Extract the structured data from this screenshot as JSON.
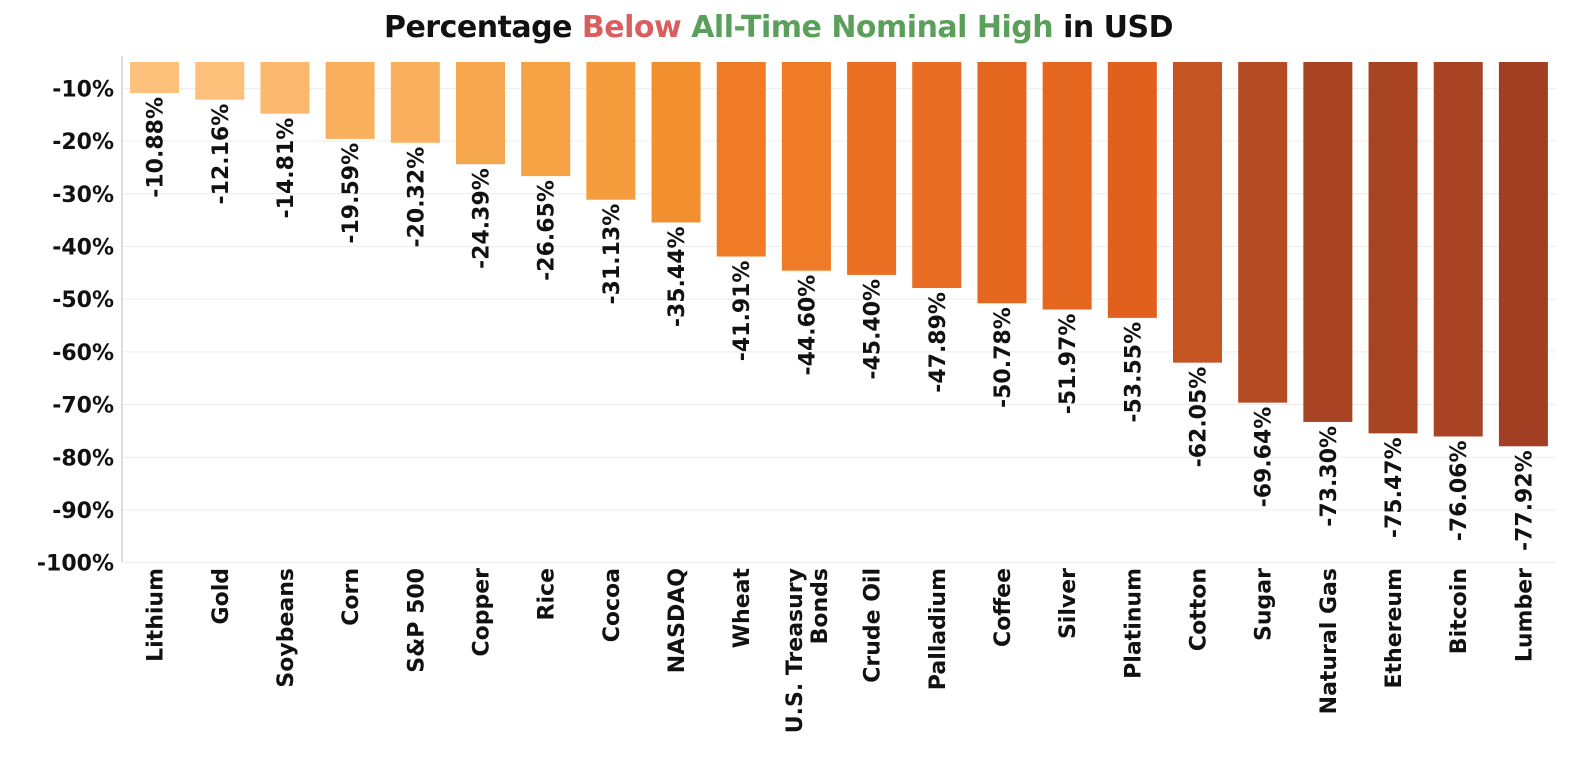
{
  "title": {
    "part1": "Percentage ",
    "part2": "Below",
    "part3": " All-Time Nominal High",
    "part4": " in USD",
    "color_below": "#d95f5f",
    "color_high": "#5aa05a"
  },
  "chart_data": {
    "type": "bar",
    "title": "Percentage Below All-Time Nominal High in USD",
    "xlabel": "",
    "ylabel": "",
    "ylim": [
      -100,
      -5
    ],
    "yticks": [
      -10,
      -20,
      -30,
      -40,
      -50,
      -60,
      -70,
      -80,
      -90,
      -100
    ],
    "ytick_labels": [
      "-10%",
      "-20%",
      "-30%",
      "-40%",
      "-50%",
      "-60%",
      "-70%",
      "-80%",
      "-90%",
      "-100%"
    ],
    "grid": true,
    "categories": [
      "Lithium",
      "Gold",
      "Soybeans",
      "Corn",
      "S&P 500",
      "Copper",
      "Rice",
      "Cocoa",
      "NASDAQ",
      "Wheat",
      "U.S. Treasury Bonds",
      "Crude Oil",
      "Palladium",
      "Coffee",
      "Silver",
      "Platinum",
      "Cotton",
      "Sugar",
      "Natural Gas",
      "Ethereum",
      "Bitcoin",
      "Lumber"
    ],
    "category_lines": [
      [
        "Lithium"
      ],
      [
        "Gold"
      ],
      [
        "Soybeans"
      ],
      [
        "Corn"
      ],
      [
        "S&P 500"
      ],
      [
        "Copper"
      ],
      [
        "Rice"
      ],
      [
        "Cocoa"
      ],
      [
        "NASDAQ"
      ],
      [
        "Wheat"
      ],
      [
        "U.S. Treasury",
        "Bonds"
      ],
      [
        "Crude Oil"
      ],
      [
        "Palladium"
      ],
      [
        "Coffee"
      ],
      [
        "Silver"
      ],
      [
        "Platinum"
      ],
      [
        "Cotton"
      ],
      [
        "Sugar"
      ],
      [
        "Natural Gas"
      ],
      [
        "Ethereum"
      ],
      [
        "Bitcoin"
      ],
      [
        "Lumber"
      ]
    ],
    "values": [
      -10.88,
      -12.16,
      -14.81,
      -19.59,
      -20.32,
      -24.39,
      -26.65,
      -31.13,
      -35.44,
      -41.91,
      -44.6,
      -45.4,
      -47.89,
      -50.78,
      -51.97,
      -53.55,
      -62.05,
      -69.64,
      -73.3,
      -75.47,
      -76.06,
      -77.92
    ],
    "value_labels": [
      "-10.88%",
      "-12.16%",
      "-14.81%",
      "-19.59%",
      "-20.32%",
      "-24.39%",
      "-26.65%",
      "-31.13%",
      "-35.44%",
      "-41.91%",
      "-44.60%",
      "-45.40%",
      "-47.89%",
      "-50.78%",
      "-51.97%",
      "-53.55%",
      "-62.05%",
      "-69.64%",
      "-73.30%",
      "-75.47%",
      "-76.06%",
      "-77.92%"
    ],
    "colors": [
      "#fdc17b",
      "#fdc17b",
      "#fbb970",
      "#f8b05f",
      "#f8b05f",
      "#f6a74e",
      "#f5a144",
      "#f59c3d",
      "#f29030",
      "#ef7b26",
      "#ef7b26",
      "#ec7024",
      "#e96d22",
      "#e5661f",
      "#e5661f",
      "#e2601e",
      "#c65524",
      "#b44b24",
      "#a84323",
      "#a84323",
      "#a84323",
      "#a23f23"
    ]
  }
}
